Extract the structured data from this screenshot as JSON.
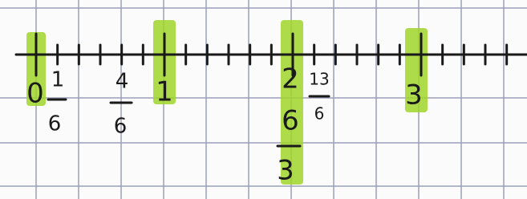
{
  "marks": [
    {
      "label": "0"
    },
    {
      "numerator": "1",
      "denominator": "6"
    },
    {
      "numerator": "4",
      "denominator": "6"
    },
    {
      "label": "1"
    },
    {
      "label": "2"
    },
    {
      "numerator": "6",
      "denominator": "3"
    },
    {
      "numerator": "13",
      "denominator": "6"
    },
    {
      "label": "3"
    }
  ]
}
